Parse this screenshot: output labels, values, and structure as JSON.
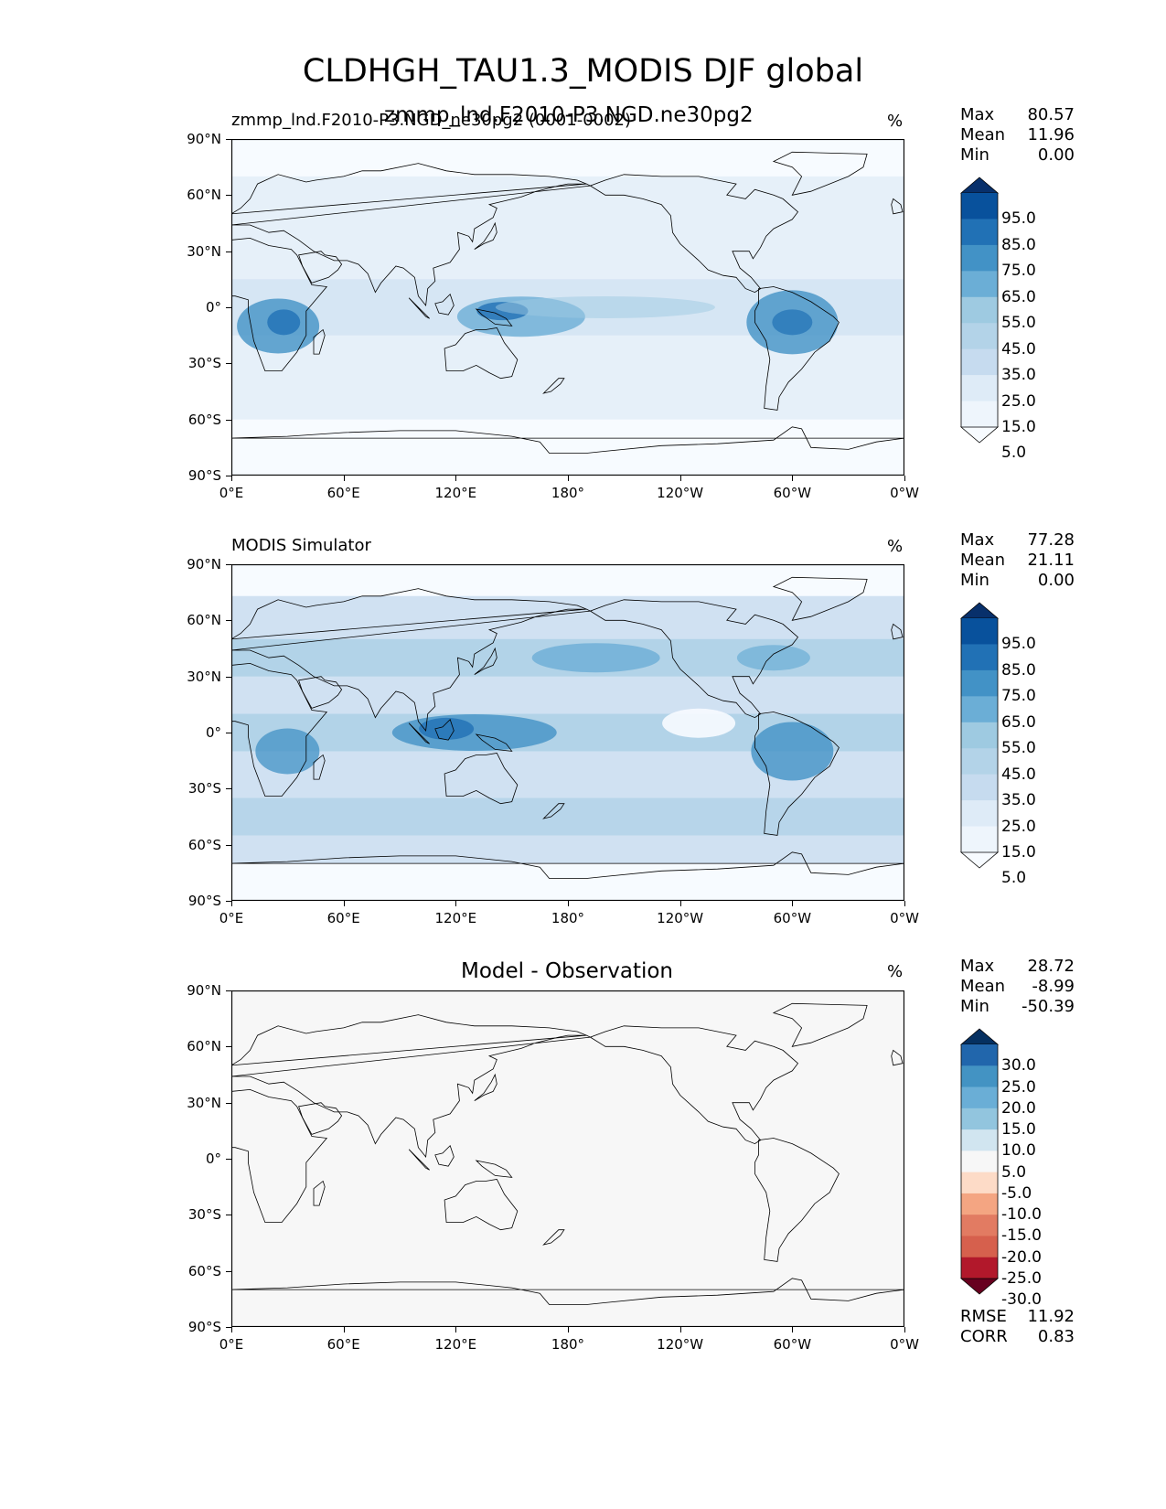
{
  "suptitle": "CLDHGH_TAU1.3_MODIS DJF global",
  "lat_labels": [
    "90°N",
    "60°N",
    "30°N",
    "0°",
    "30°S",
    "60°S",
    "90°S"
  ],
  "lon_labels": [
    "0°E",
    "60°E",
    "120°E",
    "180°",
    "120°W",
    "60°W",
    "0°W"
  ],
  "panels": [
    {
      "left_title": "zmmp_lnd.F2010-P3.NGD_ne30pg2 (0001-0002)",
      "center_title": "zmmp_lnd.F2010-P3.NGD.ne30pg2",
      "unit": "%",
      "stats": [
        {
          "label": "Max",
          "value": "80.57"
        },
        {
          "label": "Mean",
          "value": "11.96"
        },
        {
          "label": "Min",
          "value": "0.00"
        }
      ],
      "colorbar": {
        "labels": [
          "95.0",
          "85.0",
          "75.0",
          "65.0",
          "55.0",
          "45.0",
          "35.0",
          "25.0",
          "15.0",
          "5.0"
        ],
        "colors": [
          "#08306b",
          "#08519c",
          "#2171b5",
          "#4292c6",
          "#6baed6",
          "#9ecae1",
          "#b3d3e8",
          "#c6dbef",
          "#deebf7",
          "#eef5fc",
          "#f7fbff"
        ]
      }
    },
    {
      "left_title": "MODIS Simulator",
      "center_title": "",
      "unit": "%",
      "stats": [
        {
          "label": "Max",
          "value": "77.28"
        },
        {
          "label": "Mean",
          "value": "21.11"
        },
        {
          "label": "Min",
          "value": "0.00"
        }
      ],
      "colorbar": {
        "labels": [
          "95.0",
          "85.0",
          "75.0",
          "65.0",
          "55.0",
          "45.0",
          "35.0",
          "25.0",
          "15.0",
          "5.0"
        ],
        "colors": [
          "#08306b",
          "#08519c",
          "#2171b5",
          "#4292c6",
          "#6baed6",
          "#9ecae1",
          "#b3d3e8",
          "#c6dbef",
          "#deebf7",
          "#eef5fc",
          "#f7fbff"
        ]
      }
    },
    {
      "left_title": "",
      "center_title": "Model - Observation",
      "unit": "%",
      "stats": [
        {
          "label": "Max",
          "value": "28.72"
        },
        {
          "label": "Mean",
          "value": "-8.99"
        },
        {
          "label": "Min",
          "value": "-50.39"
        }
      ],
      "bottom_stats": [
        {
          "label": "RMSE",
          "value": "11.92"
        },
        {
          "label": "CORR",
          "value": "0.83"
        }
      ],
      "colorbar": {
        "labels": [
          "30.0",
          "25.0",
          "20.0",
          "15.0",
          "10.0",
          "5.0",
          "-5.0",
          "-10.0",
          "-15.0",
          "-20.0",
          "-25.0",
          "-30.0"
        ],
        "colors": [
          "#053061",
          "#2166ac",
          "#4393c3",
          "#6aaed6",
          "#92c5de",
          "#d1e5f0",
          "#f7f7f7",
          "#fddbc7",
          "#f4a582",
          "#e27b62",
          "#d6604d",
          "#b2182b",
          "#67001f"
        ]
      }
    }
  ]
}
